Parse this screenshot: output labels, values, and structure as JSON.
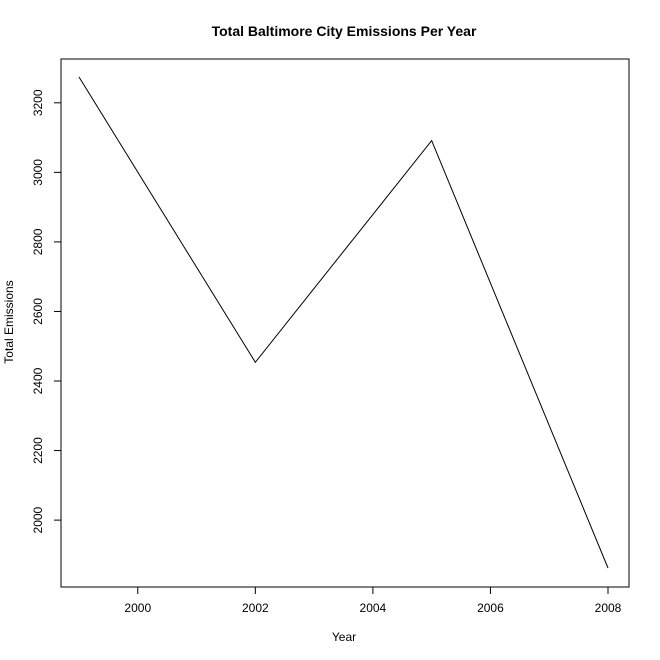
{
  "chart_data": {
    "type": "line",
    "title": "Total Baltimore City Emissions Per Year",
    "xlabel": "Year",
    "ylabel": "Total Emissions",
    "x": [
      1999,
      2002,
      2005,
      2008
    ],
    "series": [
      {
        "values": [
          3274.2,
          2453.9,
          3091.4,
          1862.3
        ]
      }
    ],
    "xlim": [
      1999,
      2008
    ],
    "ylim": [
      1862.3,
      3274.2
    ],
    "xticks": [
      2000,
      2002,
      2004,
      2006,
      2008
    ],
    "yticks": [
      2000,
      2200,
      2400,
      2600,
      2800,
      3000,
      3200
    ],
    "grid": false,
    "line_color": "#000000"
  }
}
